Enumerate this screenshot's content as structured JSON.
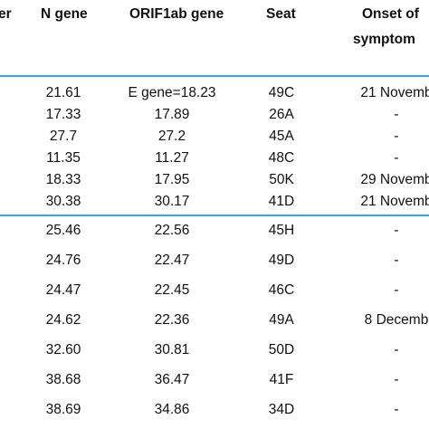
{
  "colors": {
    "rule": "#3aa7d6",
    "text": "#111111",
    "background": "#ffffff"
  },
  "table": {
    "headers": {
      "prev_fragment": "er",
      "n_gene": "N gene",
      "orf1ab_gene": "ORIF1ab gene",
      "seat": "Seat",
      "onset_line1": "Onset of",
      "onset_line2": "symptom"
    },
    "groups": [
      {
        "rows": [
          {
            "n_gene": "21.61",
            "orf1ab": "E gene=18.23",
            "seat": "49C",
            "onset": "21 Novemb"
          },
          {
            "n_gene": "17.33",
            "orf1ab": "17.89",
            "seat": "26A",
            "onset": "-"
          },
          {
            "n_gene": "27.7",
            "orf1ab": "27.2",
            "seat": "45A",
            "onset": "-"
          },
          {
            "n_gene": "11.35",
            "orf1ab": "11.27",
            "seat": "48C",
            "onset": "-"
          },
          {
            "n_gene": "18.33",
            "orf1ab": "17.95",
            "seat": "50K",
            "onset": "29 Novemb"
          },
          {
            "n_gene": "30.38",
            "orf1ab": "30.17",
            "seat": "41D",
            "onset": "21 Novemb"
          }
        ]
      },
      {
        "rows": [
          {
            "n_gene": "25.46",
            "orf1ab": "22.56",
            "seat": "45H",
            "onset": "-"
          },
          {
            "n_gene": "24.76",
            "orf1ab": "22.47",
            "seat": "49D",
            "onset": "-"
          },
          {
            "n_gene": "24.47",
            "orf1ab": "22.45",
            "seat": "46C",
            "onset": "-"
          },
          {
            "n_gene": "24.62",
            "orf1ab": "22.36",
            "seat": "49A",
            "onset": "8 Decemb"
          },
          {
            "n_gene": "32.60",
            "orf1ab": "30.81",
            "seat": "50D",
            "onset": "-"
          },
          {
            "n_gene": "38.68",
            "orf1ab": "36.47",
            "seat": "41F",
            "onset": "-"
          },
          {
            "n_gene": "38.69",
            "orf1ab": "34.86",
            "seat": "34D",
            "onset": "-"
          }
        ]
      }
    ]
  }
}
